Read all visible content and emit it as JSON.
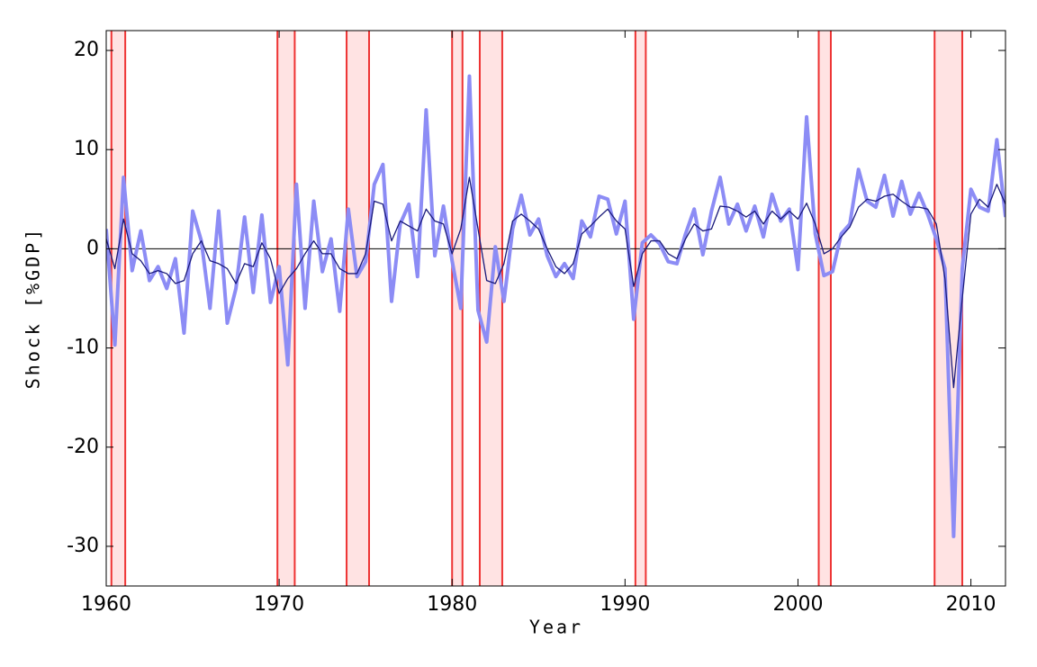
{
  "chart_data": {
    "type": "line",
    "x_label": "Year",
    "y_label": "Shock [%GDP]",
    "xlim": [
      1960,
      2012
    ],
    "xticks": [
      1960,
      1970,
      1980,
      1990,
      2000,
      2010
    ],
    "ylim": [
      -34,
      22
    ],
    "yticks": [
      -30,
      -20,
      -10,
      0,
      10,
      20
    ],
    "hlines": [
      0
    ],
    "recession_color": "#ee3333",
    "recession_fill": "#ffe3e3",
    "recessions": [
      [
        1960.3,
        1961.1
      ],
      [
        1969.9,
        1970.9
      ],
      [
        1973.9,
        1975.2
      ],
      [
        1980.0,
        1980.6
      ],
      [
        1981.6,
        1982.9
      ],
      [
        1990.6,
        1991.2
      ],
      [
        2001.2,
        2001.9
      ],
      [
        2007.9,
        2009.5
      ]
    ],
    "x": [
      1960,
      1960.5,
      1961,
      1961.5,
      1962,
      1962.5,
      1963,
      1963.5,
      1964,
      1964.5,
      1965,
      1965.5,
      1966,
      1966.5,
      1967,
      1967.5,
      1968,
      1968.5,
      1969,
      1969.5,
      1970,
      1970.5,
      1971,
      1971.5,
      1972,
      1972.5,
      1973,
      1973.5,
      1974,
      1974.5,
      1975,
      1975.5,
      1976,
      1976.5,
      1977,
      1977.5,
      1978,
      1978.5,
      1979,
      1979.5,
      1980,
      1980.5,
      1981,
      1981.5,
      1982,
      1982.5,
      1983,
      1983.5,
      1984,
      1984.5,
      1985,
      1985.5,
      1986,
      1986.5,
      1987,
      1987.5,
      1988,
      1988.5,
      1989,
      1989.5,
      1990,
      1990.5,
      1991,
      1991.5,
      1992,
      1992.5,
      1993,
      1993.5,
      1994,
      1994.5,
      1995,
      1995.5,
      1996,
      1996.5,
      1997,
      1997.5,
      1998,
      1998.5,
      1999,
      1999.5,
      2000,
      2000.5,
      2001,
      2001.5,
      2002,
      2002.5,
      2003,
      2003.5,
      2004,
      2004.5,
      2005,
      2005.5,
      2006,
      2006.5,
      2007,
      2007.5,
      2008,
      2008.5,
      2009,
      2009.5,
      2010,
      2010.5,
      2011,
      2011.5,
      2012
    ],
    "series": [
      {
        "color": "#8c8cf5",
        "width": 4,
        "values": [
          2,
          -9.7,
          7.2,
          -2.2,
          1.8,
          -3.2,
          -1.8,
          -4,
          -1,
          -8.5,
          3.8,
          0.8,
          -6,
          3.8,
          -7.5,
          -4,
          3.2,
          -4.4,
          3.4,
          -5.4,
          -1.8,
          -11.7,
          6.5,
          -6,
          4.8,
          -2.3,
          1,
          -6.3,
          4,
          -2.8,
          -1.3,
          6.5,
          8.5,
          -5.3,
          2.5,
          4.5,
          -2.8,
          14,
          -0.7,
          4.3,
          -1.2,
          -6,
          17.4,
          -6.2,
          -9.4,
          0.2,
          -5.3,
          2,
          5.4,
          1.4,
          3,
          -0.7,
          -2.8,
          -1.5,
          -3,
          2.8,
          1.2,
          5.3,
          5,
          1.5,
          4.8,
          -7.1,
          0.6,
          1.4,
          0.5,
          -1.3,
          -1.5,
          1.5,
          4,
          -0.6,
          3.8,
          7.2,
          2.5,
          4.5,
          1.8,
          4.3,
          1.2,
          5.5,
          2.8,
          4,
          -2.1,
          13.3,
          1.5,
          -2.7,
          -2.3,
          1.5,
          2.5,
          8,
          4.8,
          4.2,
          7.4,
          3.3,
          6.8,
          3.5,
          5.6,
          3.5,
          1,
          -2,
          -29,
          -2,
          6,
          4.2,
          3.8,
          11,
          3.2
        ]
      },
      {
        "color": "#1a1a7a",
        "width": 1.3,
        "values": [
          1,
          -2,
          3,
          -0.5,
          -1.2,
          -2.5,
          -2.2,
          -2.5,
          -3.5,
          -3.2,
          -0.5,
          0.8,
          -1.2,
          -1.5,
          -2,
          -3.5,
          -1.5,
          -1.8,
          0.6,
          -1,
          -4.5,
          -3,
          -2,
          -0.5,
          0.8,
          -0.5,
          -0.5,
          -2,
          -2.5,
          -2.5,
          -0.5,
          4.8,
          4.5,
          0.8,
          2.8,
          2.3,
          1.8,
          4,
          2.8,
          2.5,
          -0.5,
          2,
          7.2,
          2,
          -3.2,
          -3.5,
          -1.5,
          2.8,
          3.5,
          2.8,
          2,
          0,
          -1.8,
          -2.5,
          -1.5,
          1.5,
          2.3,
          3.2,
          4,
          2.8,
          2,
          -3.8,
          -0.5,
          0.8,
          0.8,
          -0.5,
          -1,
          1,
          2.5,
          1.8,
          2,
          4.3,
          4.2,
          3.8,
          3.2,
          3.8,
          2.5,
          3.8,
          3,
          3.8,
          3,
          4.6,
          2.5,
          -0.5,
          0,
          1.2,
          2.2,
          4.2,
          5,
          4.8,
          5.3,
          5.5,
          4.8,
          4.2,
          4.2,
          4,
          2.5,
          -3,
          -14,
          -5,
          3.5,
          5,
          4.2,
          6.5,
          4.5
        ]
      }
    ]
  }
}
